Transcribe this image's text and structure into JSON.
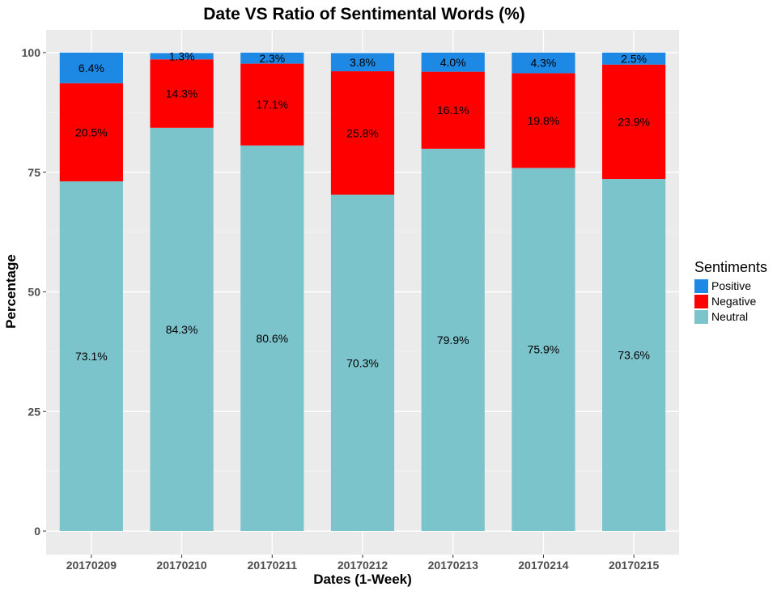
{
  "chart_data": {
    "type": "bar",
    "stacked": true,
    "title": "Date VS Ratio of Sentimental Words (%)",
    "xlabel": "Dates (1-Week)",
    "ylabel": "Percentage",
    "ylim": [
      0,
      100
    ],
    "yticks": [
      0,
      25,
      50,
      75,
      100
    ],
    "grid": true,
    "legend_title": "Sentiments",
    "legend_position": "right",
    "categories": [
      "20170209",
      "20170210",
      "20170211",
      "20170212",
      "20170213",
      "20170214",
      "20170215"
    ],
    "series": [
      {
        "name": "Neutral",
        "color": "#7bc4cc",
        "values": [
          73.1,
          84.3,
          80.6,
          70.3,
          79.9,
          75.9,
          73.6
        ],
        "labels": [
          "73.1%",
          "84.3%",
          "80.6%",
          "70.3%",
          "79.9%",
          "75.9%",
          "73.6%"
        ]
      },
      {
        "name": "Negative",
        "color": "#ff0000",
        "values": [
          20.5,
          14.3,
          17.1,
          25.8,
          16.1,
          19.8,
          23.9
        ],
        "labels": [
          "20.5%",
          "14.3%",
          "17.1%",
          "25.8%",
          "16.1%",
          "19.8%",
          "23.9%"
        ]
      },
      {
        "name": "Positive",
        "color": "#1e88e5",
        "values": [
          6.4,
          1.3,
          2.3,
          3.8,
          4.0,
          4.3,
          2.5
        ],
        "labels": [
          "6.4%",
          "1.3%",
          "2.3%",
          "3.8%",
          "4.0%",
          "4.3%",
          "2.5%"
        ]
      }
    ],
    "legend_order": [
      "Positive",
      "Negative",
      "Neutral"
    ]
  }
}
